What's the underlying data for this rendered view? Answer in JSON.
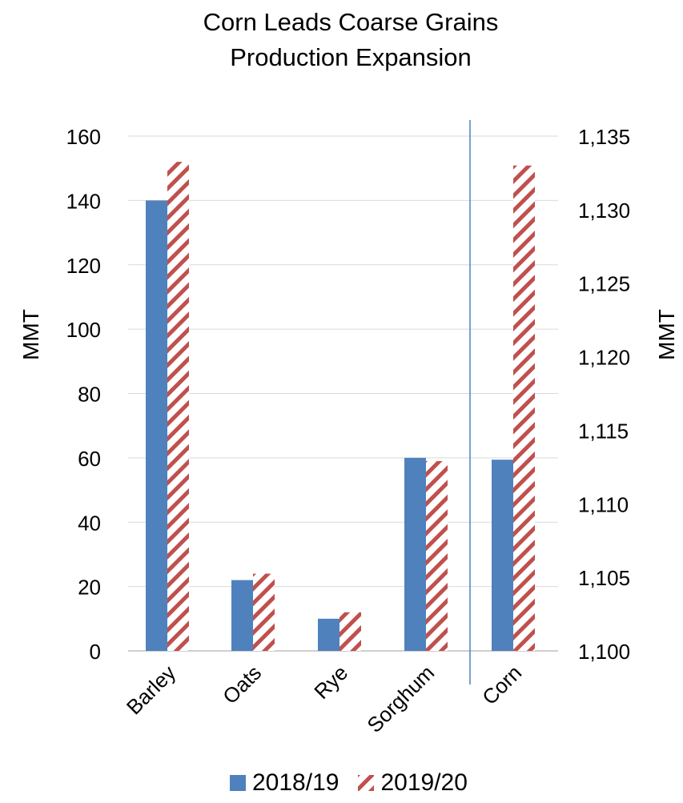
{
  "chart_data": {
    "type": "bar",
    "title": "Corn Leads Coarse Grains Production Expansion",
    "title_lines": [
      "Corn Leads Coarse Grains",
      "Production Expansion"
    ],
    "categories": [
      "Barley",
      "Oats",
      "Rye",
      "Sorghum",
      "Corn"
    ],
    "series": [
      {
        "name": "2018/19",
        "values": [
          140,
          22,
          10,
          60,
          1113
        ],
        "color": "#4f81bd",
        "fill": "solid"
      },
      {
        "name": "2019/20",
        "values": [
          152,
          24,
          12,
          59,
          1133
        ],
        "color": "#c0504d",
        "fill": "diagonal-stripes"
      }
    ],
    "left_axis": {
      "label": "MMT",
      "ylim": [
        0,
        160
      ],
      "ticks": [
        "0",
        "20",
        "40",
        "60",
        "80",
        "100",
        "120",
        "140",
        "160"
      ],
      "categories": [
        "Barley",
        "Oats",
        "Rye",
        "Sorghum"
      ]
    },
    "right_axis": {
      "label": "MMT",
      "ylim": [
        1100,
        1135
      ],
      "ticks": [
        "1,100",
        "1,105",
        "1,110",
        "1,115",
        "1,120",
        "1,125",
        "1,130",
        "1,135"
      ],
      "categories": [
        "Corn"
      ]
    },
    "grid": true,
    "divider_before": "Corn",
    "legend_position": "bottom"
  }
}
